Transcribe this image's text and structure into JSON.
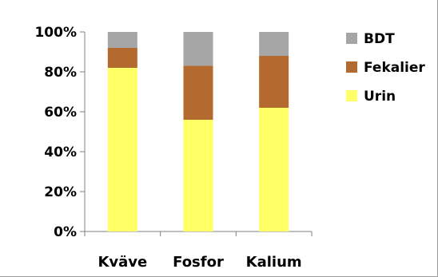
{
  "chart_data": {
    "type": "bar",
    "stacked": true,
    "categories": [
      "Kväve",
      "Fosfor",
      "Kalium"
    ],
    "series": [
      {
        "name": "Urin",
        "values": [
          82,
          56,
          62
        ],
        "color": "#ffff66"
      },
      {
        "name": "Fekalier",
        "values": [
          10,
          27,
          26
        ],
        "color": "#b46a2f"
      },
      {
        "name": "BDT",
        "values": [
          8,
          17,
          12
        ],
        "color": "#a6a6a6"
      }
    ],
    "y_tick_labels": [
      "0%",
      "20%",
      "40%",
      "60%",
      "80%",
      "100%"
    ],
    "ylim": [
      0,
      100
    ],
    "legend_order": [
      "BDT",
      "Fekalier",
      "Urin"
    ],
    "legend_position": "right",
    "grid": false
  }
}
